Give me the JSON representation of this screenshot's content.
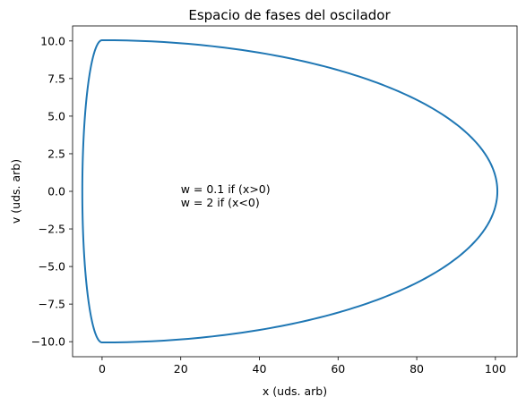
{
  "chart_data": {
    "type": "line",
    "title": "Espacio de fases del oscilador",
    "xlabel": "x (uds. arb)",
    "ylabel": "v (uds. arb)",
    "xlim": [
      -7.5,
      105.5
    ],
    "ylim": [
      -11.0,
      11.0
    ],
    "x_ticks": [
      0,
      20,
      40,
      60,
      80,
      100
    ],
    "y_ticks": [
      -10.0,
      -7.5,
      -5.0,
      -2.5,
      0.0,
      2.5,
      5.0,
      7.5,
      10.0
    ],
    "x_tick_labels": [
      "0",
      "20",
      "40",
      "60",
      "80",
      "100"
    ],
    "y_tick_labels": [
      "−10.0",
      "−7.5",
      "−5.0",
      "−2.5",
      "0.0",
      "2.5",
      "5.0",
      "7.5",
      "10.0"
    ],
    "grid": false,
    "annotation": {
      "lines": [
        "w = 0.1 if (x>0)",
        "w = 2 if (x<0)"
      ],
      "x": 20,
      "y": 0.0
    },
    "series": [
      {
        "color": "#1f77b4",
        "right_half": {
          "w": 0.1,
          "amplitude_v": 10.05
        },
        "left_half": {
          "w": 2,
          "amplitude_v": 10.05
        }
      }
    ]
  }
}
